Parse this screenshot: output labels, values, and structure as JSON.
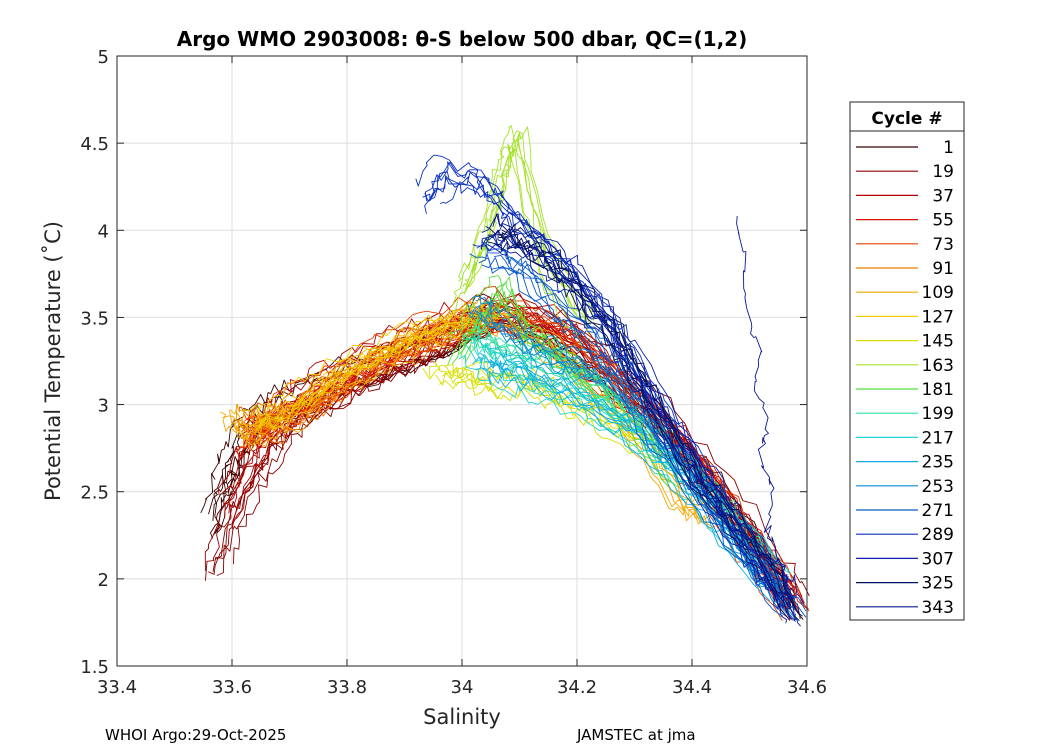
{
  "chart_data": {
    "type": "line",
    "title": "Argo WMO 2903008: θ-S below 500 dbar,  QC=(1,2)",
    "xlabel": "Salinity",
    "ylabel": "Potential Temperature (˚C)",
    "xlim": [
      33.4,
      34.6
    ],
    "ylim": [
      1.5,
      5
    ],
    "xticks": [
      33.4,
      33.6,
      33.8,
      34,
      34.2,
      34.4,
      34.6
    ],
    "xtick_labels": [
      "33.4",
      "33.6",
      "33.8",
      "34",
      "34.2",
      "34.4",
      "34.6"
    ],
    "yticks": [
      1.5,
      2,
      2.5,
      3,
      3.5,
      4,
      4.5,
      5
    ],
    "ytick_labels": [
      "1.5",
      "2",
      "2.5",
      "3",
      "3.5",
      "4",
      "4.5",
      "5"
    ],
    "grid": true,
    "legend": {
      "title": "Cycle #",
      "placement": "right-outside",
      "entries": [
        "1",
        "19",
        "37",
        "55",
        "73",
        "91",
        "109",
        "127",
        "145",
        "163",
        "181",
        "199",
        "217",
        "235",
        "253",
        "271",
        "289",
        "307",
        "325",
        "343"
      ],
      "colors": [
        "#3a0000",
        "#8b0000",
        "#b00000",
        "#d81000",
        "#e84000",
        "#ee7a00",
        "#f2a800",
        "#f2cc00",
        "#d6e000",
        "#a6e22a",
        "#55e040",
        "#2ee0a0",
        "#20d6d0",
        "#10aee0",
        "#0a8ad6",
        "#0a5ac8",
        "#0a30c0",
        "#0a1ea8",
        "#061060",
        "#0a1a90"
      ]
    },
    "series": [
      {
        "name": "1",
        "x": [
          33.565,
          33.58,
          33.6,
          33.62,
          33.65,
          33.7,
          33.75,
          33.82,
          33.9,
          33.98,
          34.05,
          34.15,
          34.25,
          34.35,
          34.45,
          34.52,
          34.58
        ],
        "y": [
          2.35,
          2.55,
          2.7,
          2.85,
          2.95,
          3.05,
          3.12,
          3.22,
          3.3,
          3.4,
          3.55,
          3.4,
          3.15,
          2.9,
          2.55,
          2.2,
          1.85
        ]
      },
      {
        "name": "19",
        "x": [
          33.575,
          33.6,
          33.64,
          33.68,
          33.72,
          33.78,
          33.85,
          33.92,
          33.98,
          34.05,
          34.15,
          34.25,
          34.35,
          34.45,
          34.55,
          34.58
        ],
        "y": [
          2.1,
          2.35,
          2.6,
          2.8,
          2.95,
          3.05,
          3.18,
          3.28,
          3.38,
          3.55,
          3.5,
          3.25,
          2.95,
          2.55,
          2.05,
          1.9
        ]
      },
      {
        "name": "37",
        "x": [
          33.59,
          33.63,
          33.68,
          33.73,
          33.8,
          33.87,
          33.94,
          34.0,
          34.08,
          34.18,
          34.28,
          34.38,
          34.48,
          34.57
        ],
        "y": [
          2.4,
          2.7,
          2.92,
          3.05,
          3.18,
          3.3,
          3.4,
          3.48,
          3.55,
          3.45,
          3.15,
          2.8,
          2.35,
          1.92
        ]
      },
      {
        "name": "55",
        "x": [
          33.62,
          33.66,
          33.72,
          33.78,
          33.85,
          33.92,
          34.0,
          34.08,
          34.18,
          34.28,
          34.4,
          34.5,
          34.58
        ],
        "y": [
          2.8,
          2.95,
          3.05,
          3.15,
          3.3,
          3.4,
          3.48,
          3.52,
          3.4,
          3.1,
          2.7,
          2.25,
          1.85
        ]
      },
      {
        "name": "73",
        "x": [
          33.63,
          33.67,
          33.72,
          33.78,
          33.85,
          33.92,
          34.0,
          34.08,
          34.18,
          34.3,
          34.42,
          34.52,
          34.58
        ],
        "y": [
          2.85,
          2.9,
          3.0,
          3.12,
          3.26,
          3.38,
          3.48,
          3.55,
          3.42,
          3.05,
          2.6,
          2.15,
          1.85
        ]
      },
      {
        "name": "91",
        "x": [
          33.61,
          33.64,
          33.68,
          33.74,
          33.8,
          33.87,
          33.94,
          34.0,
          34.06
        ],
        "y": [
          2.9,
          2.86,
          2.9,
          3.0,
          3.15,
          3.28,
          3.38,
          3.46,
          3.52
        ]
      },
      {
        "name": "109",
        "x": [
          33.6,
          33.63,
          33.67,
          33.73,
          33.8,
          33.88,
          33.95,
          34.02,
          34.1,
          34.2,
          34.3,
          34.38,
          34.43
        ],
        "y": [
          2.95,
          2.84,
          2.88,
          3.0,
          3.18,
          3.3,
          3.42,
          3.5,
          3.48,
          3.2,
          2.85,
          2.45,
          2.36
        ]
      },
      {
        "name": "127",
        "x": [
          33.64,
          33.68,
          33.74,
          33.8,
          33.87,
          33.94,
          34.0,
          34.06
        ],
        "y": [
          2.88,
          2.92,
          3.05,
          3.18,
          3.3,
          3.4,
          3.46,
          3.5
        ]
      },
      {
        "name": "145",
        "x": [
          33.96,
          34.0,
          34.05,
          34.1,
          34.16,
          34.22,
          34.3
        ],
        "y": [
          3.15,
          3.18,
          3.12,
          3.16,
          3.05,
          2.98,
          2.8
        ]
      },
      {
        "name": "163",
        "x": [
          34.0,
          34.03,
          34.06,
          34.08,
          34.1,
          34.15,
          34.22
        ],
        "y": [
          3.6,
          3.8,
          4.1,
          4.4,
          4.5,
          3.8,
          3.4
        ]
      },
      {
        "name": "181",
        "x": [
          34.0,
          34.04,
          34.08,
          34.12,
          34.18,
          34.24,
          34.3,
          34.38
        ],
        "y": [
          3.3,
          3.55,
          3.7,
          3.45,
          3.3,
          3.15,
          2.95,
          2.6
        ]
      },
      {
        "name": "199",
        "x": [
          34.02,
          34.06,
          34.12,
          34.2,
          34.28,
          34.36,
          34.45,
          34.52
        ],
        "y": [
          3.45,
          3.35,
          3.3,
          3.2,
          3.0,
          2.8,
          2.45,
          2.15
        ]
      },
      {
        "name": "217",
        "x": [
          34.02,
          34.06,
          34.12,
          34.2,
          34.28,
          34.36,
          34.45,
          34.55
        ],
        "y": [
          3.3,
          3.2,
          3.1,
          3.0,
          2.85,
          2.65,
          2.35,
          2.0
        ]
      },
      {
        "name": "235",
        "x": [
          34.04,
          34.08,
          34.14,
          34.22,
          34.3,
          34.38,
          34.46,
          34.55
        ],
        "y": [
          3.25,
          3.22,
          3.18,
          3.05,
          2.88,
          2.62,
          2.3,
          1.95
        ]
      },
      {
        "name": "253",
        "x": [
          34.03,
          34.08,
          34.14,
          34.2,
          34.26,
          34.34,
          34.42,
          34.5,
          34.58
        ],
        "y": [
          3.55,
          3.45,
          3.3,
          3.25,
          3.15,
          2.9,
          2.55,
          2.15,
          1.82
        ]
      },
      {
        "name": "271",
        "x": [
          34.04,
          34.1,
          34.18,
          34.24,
          34.28,
          34.34,
          34.42,
          34.5,
          34.58
        ],
        "y": [
          3.9,
          3.8,
          3.55,
          3.35,
          3.2,
          2.85,
          2.5,
          2.15,
          1.82
        ]
      },
      {
        "name": "289",
        "x": [
          33.94,
          33.98,
          34.04,
          34.08,
          34.14,
          34.2,
          34.26,
          34.32,
          34.4,
          34.48,
          34.56
        ],
        "y": [
          4.2,
          4.35,
          4.3,
          4.15,
          3.95,
          3.75,
          3.5,
          3.15,
          2.75,
          2.35,
          1.9
        ]
      },
      {
        "name": "307",
        "x": [
          34.04,
          34.08,
          34.14,
          34.2,
          34.26,
          34.32,
          34.38,
          34.44,
          34.5,
          34.56,
          34.58
        ],
        "y": [
          3.95,
          3.98,
          3.88,
          3.7,
          3.45,
          3.1,
          2.75,
          2.45,
          2.2,
          1.95,
          1.8
        ]
      },
      {
        "name": "325",
        "x": [
          34.06,
          34.1,
          34.16,
          34.22,
          34.28,
          34.34,
          34.4,
          34.46,
          34.52,
          34.58
        ],
        "y": [
          4.0,
          3.95,
          3.82,
          3.6,
          3.35,
          3.0,
          2.65,
          2.4,
          2.15,
          1.82
        ]
      },
      {
        "name": "343",
        "x": [
          34.48,
          34.49,
          34.5,
          34.52,
          34.51,
          34.53,
          34.52,
          34.54,
          34.53,
          34.55,
          34.56,
          34.57
        ],
        "y": [
          4.1,
          3.8,
          3.5,
          3.3,
          3.1,
          2.9,
          2.7,
          2.5,
          2.3,
          2.15,
          2.0,
          1.85
        ]
      }
    ]
  },
  "footer": {
    "left": "WHOI Argo:29-Oct-2025",
    "right": "JAMSTEC at jma"
  }
}
